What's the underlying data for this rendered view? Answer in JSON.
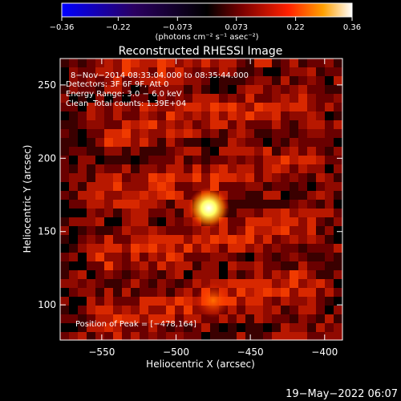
{
  "colorbar": {
    "ticks": [
      -0.36,
      -0.22,
      -0.073,
      0.073,
      0.22,
      0.36
    ],
    "tick_labels": [
      "−0.36",
      "−0.22",
      "−0.073",
      "0.073",
      "0.22",
      "0.36"
    ],
    "range": [
      -0.36,
      0.36
    ],
    "unit_label": "(photons cm⁻² s⁻¹ asec⁻²)",
    "colors": [
      "#0000ff",
      "#2a0060",
      "#000000",
      "#7a0000",
      "#ff2000",
      "#ffa000",
      "#ffffff"
    ]
  },
  "chart_data": {
    "type": "heatmap",
    "title": "Reconstructed RHESSI Image",
    "xlabel": "Heliocentric X (arcsec)",
    "ylabel": "Heliocentric Y (arcsec)",
    "xlim": [
      -578,
      -388
    ],
    "ylim": [
      76,
      268
    ],
    "xticks": [
      -550,
      -500,
      -450,
      -400
    ],
    "xtick_labels": [
      "−550",
      "−500",
      "−450",
      "−400"
    ],
    "yticks": [
      100,
      150,
      200,
      250
    ],
    "ytick_labels": [
      "100",
      "150",
      "200",
      "250"
    ],
    "peak": {
      "x": -478,
      "y": 164
    },
    "sources": [
      {
        "x": -478,
        "y": 166,
        "value": 0.36
      },
      {
        "x": -475,
        "y": 103,
        "value": 0.16
      }
    ],
    "annotations": {
      "time_range": "8−Nov−2014 08:33:04.000 to 08:35:44.000",
      "detectors": "Detectors: 3F 6F 9F, Att 0",
      "energy": "Energy Range: 3.0 − 6.0 keV",
      "method": "Clean",
      "counts": "Total counts: 1.39E+04",
      "peak_label": "Position of Peak = [−478,164]"
    }
  },
  "footer": {
    "timestamp": "19−May−2022 06:07"
  }
}
